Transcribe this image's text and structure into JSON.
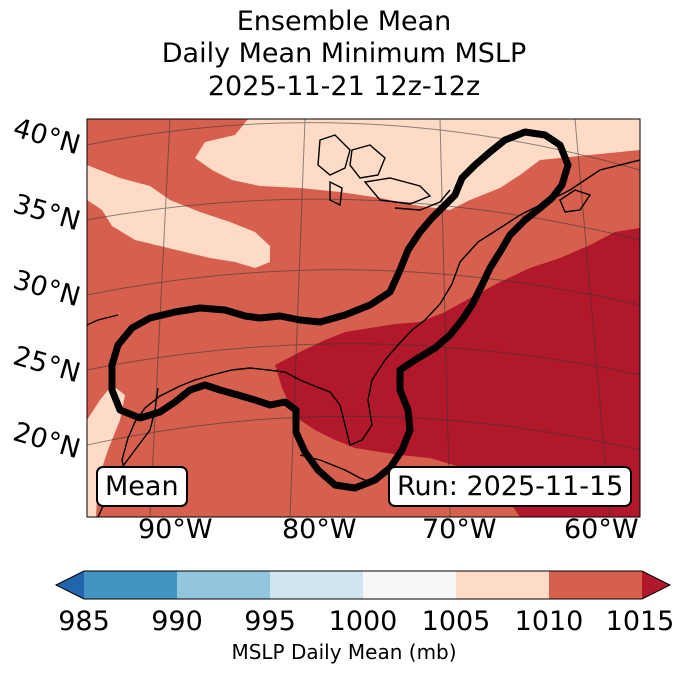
{
  "title": {
    "line1": "Ensemble Mean",
    "line2": "Daily Mean Minimum MSLP",
    "line3": "2025-11-21 12z-12z"
  },
  "lat_labels": [
    "40°N",
    "35°N",
    "30°N",
    "25°N",
    "20°N"
  ],
  "lon_labels": [
    "90°W",
    "80°W",
    "70°W",
    "60°W"
  ],
  "mean_box": "Mean",
  "run_box": "Run: 2025-11-15",
  "colorbar": {
    "label": "MSLP Daily Mean (mb)",
    "ticks": [
      "985",
      "990",
      "995",
      "1000",
      "1005",
      "1010",
      "1015"
    ],
    "colors": {
      "below": "#2166ac",
      "c985_990": "#4393c3",
      "c990_995": "#92c5de",
      "c995_1000": "#d1e5f0",
      "c1000_1005": "#f7f7f7",
      "c1005_1010": "#fddbc7",
      "c1010_1015": "#d6604d",
      "above": "#b2182b"
    }
  },
  "map_fields": {
    "region_1005_1010": "#fddbc7",
    "region_1010_1015": "#d6604d",
    "region_above_1015": "#b2182b",
    "contour_color": "#000000"
  }
}
